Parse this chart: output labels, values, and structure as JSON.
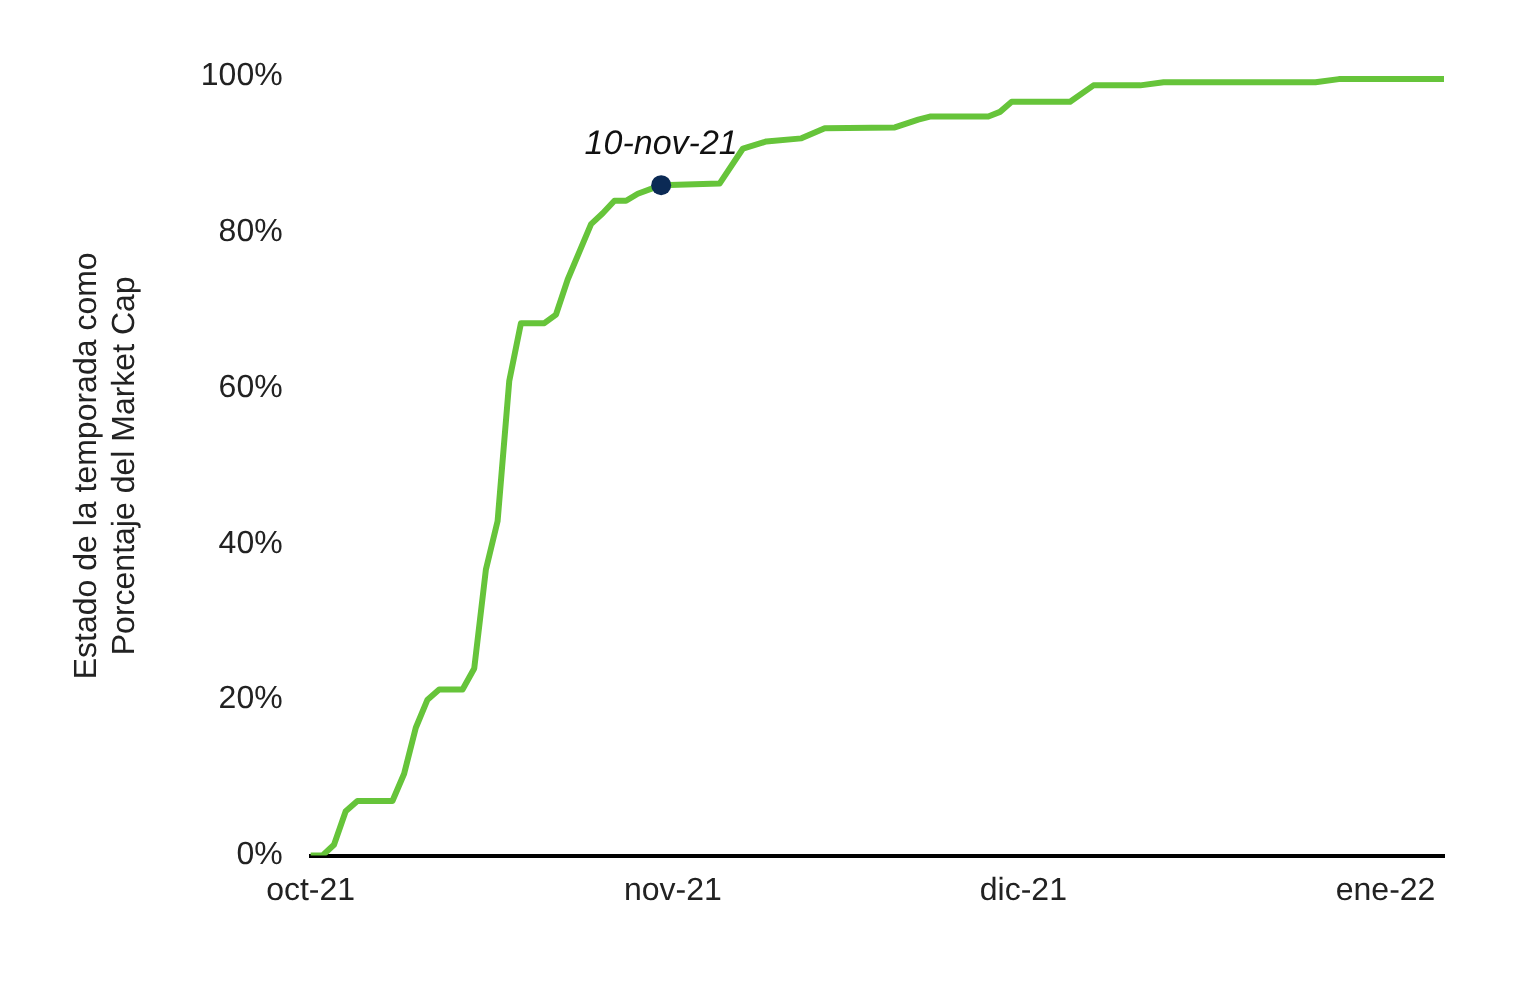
{
  "chart_data": {
    "type": "line",
    "ylabel": "Estado de la temporada como\nPorcentaje del Market Cap",
    "x": [
      "2021-10-11",
      "2021-10-12",
      "2021-10-13",
      "2021-10-14",
      "2021-10-15",
      "2021-10-18",
      "2021-10-19",
      "2021-10-20",
      "2021-10-21",
      "2021-10-22",
      "2021-10-24",
      "2021-10-25",
      "2021-10-26",
      "2021-10-27",
      "2021-10-28",
      "2021-10-29",
      "2021-10-31",
      "2021-11-01",
      "2021-11-02",
      "2021-11-04",
      "2021-11-05",
      "2021-11-06",
      "2021-11-07",
      "2021-11-08",
      "2021-11-10",
      "2021-11-15",
      "2021-11-17",
      "2021-11-19",
      "2021-11-22",
      "2021-11-24",
      "2021-11-30",
      "2021-12-02",
      "2021-12-03",
      "2021-12-08",
      "2021-12-09",
      "2021-12-10",
      "2021-12-15",
      "2021-12-17",
      "2021-12-21",
      "2021-12-23",
      "2022-01-05",
      "2022-01-07",
      "2022-01-16"
    ],
    "series": [
      {
        "color": "#66c43a",
        "values": [
          0,
          0,
          1.4,
          5.7,
          7,
          7,
          10.5,
          16.4,
          20,
          21.3,
          21.3,
          24,
          36.7,
          42.9,
          60.9,
          68.3,
          68.3,
          69.4,
          73.9,
          81,
          82.4,
          84,
          84,
          84.9,
          86,
          86.2,
          90.7,
          91.6,
          92,
          93.3,
          93.4,
          94.4,
          94.8,
          94.8,
          95.4,
          96.7,
          96.7,
          98.8,
          98.8,
          99.2,
          99.2,
          99.6,
          99.6
        ]
      }
    ],
    "xlim": [
      "2021-10-11",
      "2022-01-16"
    ],
    "xticks": [
      {
        "value": "2021-10-11",
        "label": "oct-21"
      },
      {
        "value": "2021-11-11",
        "label": "nov-21"
      },
      {
        "value": "2021-12-11",
        "label": "dic-21"
      },
      {
        "value": "2022-01-11",
        "label": "ene-22"
      }
    ],
    "ylim": [
      0,
      100
    ],
    "yticks": [
      {
        "value": 0,
        "label": "0%"
      },
      {
        "value": 20,
        "label": "20%"
      },
      {
        "value": 40,
        "label": "40%"
      },
      {
        "value": 60,
        "label": "60%"
      },
      {
        "value": 80,
        "label": "80%"
      },
      {
        "value": 100,
        "label": "100%"
      }
    ],
    "annotations": [
      {
        "text": "10-nov-21",
        "x": "2021-11-10",
        "y": 86
      }
    ],
    "grid": false,
    "legend": false,
    "marker": "none",
    "line_style": "solid"
  }
}
